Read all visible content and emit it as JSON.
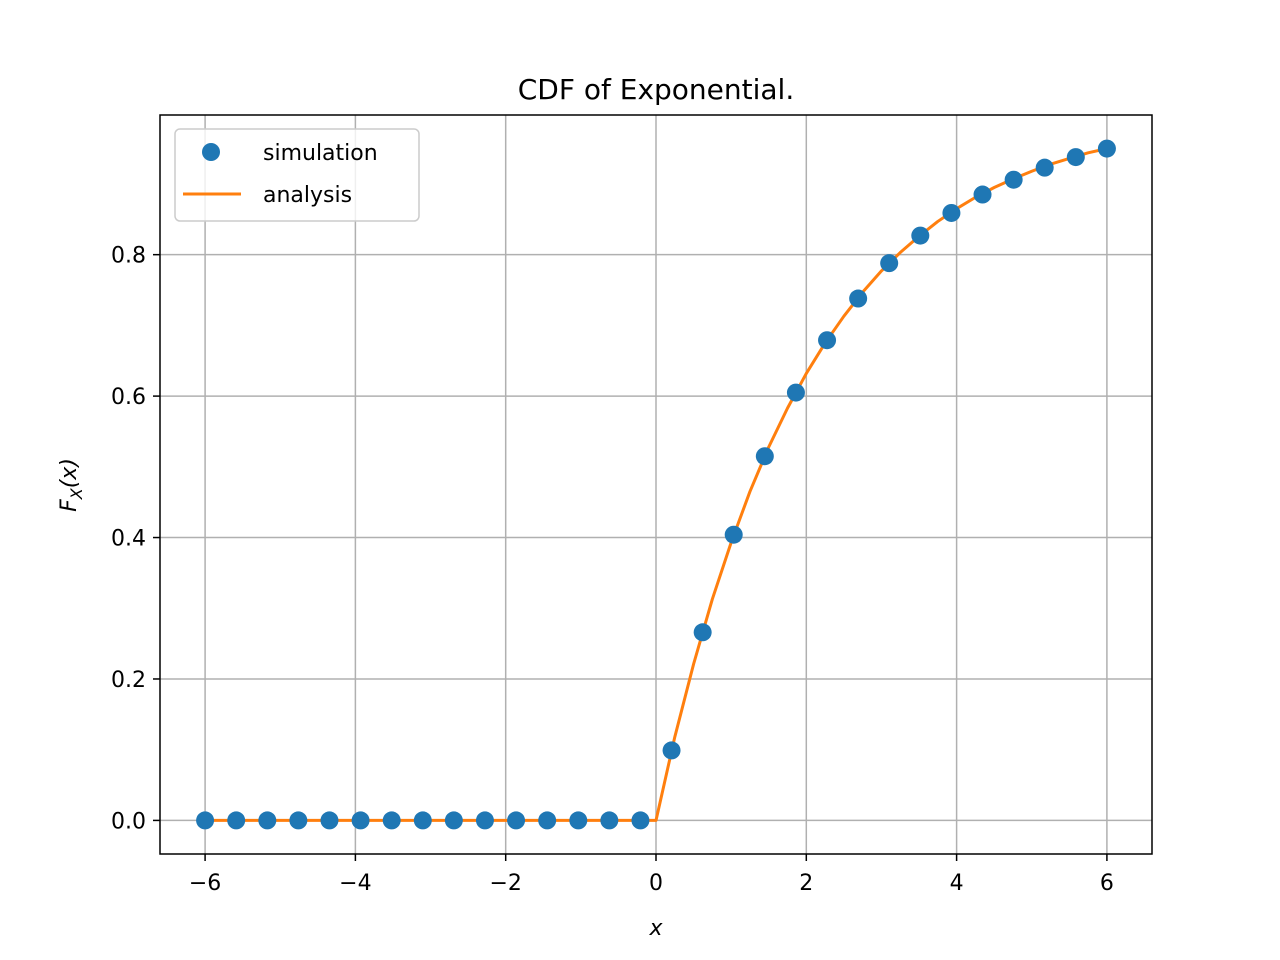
{
  "chart_data": {
    "type": "line",
    "title": "CDF of Exponential.",
    "xlabel": "x",
    "ylabel": {
      "base": "F",
      "sub": "X",
      "rest": "(x)"
    },
    "xlim": [
      -6.6,
      6.6
    ],
    "ylim": [
      -0.0475,
      0.9975
    ],
    "xticks": [
      -6,
      -4,
      -2,
      0,
      2,
      4,
      6
    ],
    "xtick_labels": [
      "−6",
      "−4",
      "−2",
      "0",
      "2",
      "4",
      "6"
    ],
    "yticks": [
      0.0,
      0.2,
      0.4,
      0.6,
      0.8
    ],
    "ytick_labels": [
      "0.0",
      "0.2",
      "0.4",
      "0.6",
      "0.8"
    ],
    "grid": true,
    "legend": {
      "location": "top-left",
      "entries": [
        "simulation",
        "analysis"
      ]
    },
    "series": [
      {
        "name": "simulation",
        "marker": "circle",
        "color": "#1f77b4",
        "x": [
          -6.0,
          -5.586,
          -5.172,
          -4.759,
          -4.345,
          -3.931,
          -3.517,
          -3.103,
          -2.69,
          -2.276,
          -1.862,
          -1.448,
          -1.034,
          -0.621,
          -0.207,
          0.207,
          0.621,
          1.034,
          1.448,
          1.862,
          2.276,
          2.69,
          3.103,
          3.517,
          3.931,
          4.345,
          4.759,
          5.172,
          5.586,
          6.0
        ],
        "y": [
          0,
          0,
          0,
          0,
          0,
          0,
          0,
          0,
          0,
          0,
          0,
          0,
          0,
          0,
          0,
          0.099,
          0.266,
          0.404,
          0.515,
          0.605,
          0.679,
          0.738,
          0.788,
          0.827,
          0.859,
          0.885,
          0.906,
          0.923,
          0.938,
          0.95
        ]
      },
      {
        "name": "analysis",
        "marker": "line",
        "color": "#ff7f0e",
        "x": [
          -6.0,
          -5.0,
          -4.0,
          -3.0,
          -2.0,
          -1.0,
          0.0,
          0.25,
          0.5,
          0.75,
          1.0,
          1.25,
          1.5,
          1.75,
          2.0,
          2.25,
          2.5,
          2.75,
          3.0,
          3.25,
          3.5,
          3.75,
          4.0,
          4.25,
          4.5,
          4.75,
          5.0,
          5.25,
          5.5,
          5.75,
          6.0
        ],
        "y": [
          0,
          0,
          0,
          0,
          0,
          0,
          0,
          0.118,
          0.221,
          0.313,
          0.393,
          0.465,
          0.528,
          0.583,
          0.632,
          0.675,
          0.713,
          0.747,
          0.777,
          0.803,
          0.826,
          0.847,
          0.865,
          0.881,
          0.895,
          0.907,
          0.918,
          0.928,
          0.936,
          0.944,
          0.95
        ]
      }
    ]
  }
}
